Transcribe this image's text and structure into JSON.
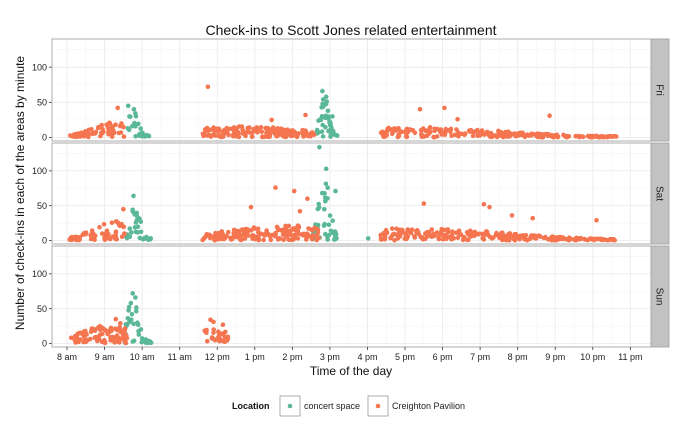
{
  "chart_data": {
    "type": "scatter",
    "title": "Check-ins to Scott Jones related entertainment",
    "xlabel": "Time of the day",
    "ylabel": "Number of check-ins in each of the areas by minute",
    "x_units": "hours since midnight",
    "xlim": [
      7.6,
      23.55
    ],
    "ylim": [
      -5,
      140
    ],
    "x_ticks": [
      8,
      9,
      10,
      11,
      12,
      13,
      14,
      15,
      16,
      17,
      18,
      19,
      20,
      21,
      22,
      23
    ],
    "x_tick_labels": [
      "8 am",
      "9 am",
      "10 am",
      "11 am",
      "12 pm",
      "1 pm",
      "2 pm",
      "3 pm",
      "4 pm",
      "5 pm",
      "6 pm",
      "7 pm",
      "8 pm",
      "9 pm",
      "10 pm",
      "11 pm"
    ],
    "y_ticks": [
      0,
      50,
      100
    ],
    "y_tick_labels": [
      "0",
      "50",
      "100"
    ],
    "grid": true,
    "facets": [
      "Fri",
      "Sat",
      "Sun"
    ],
    "legend": {
      "title": "Location",
      "position": "bottom",
      "entries": [
        {
          "label": "concert space",
          "color": "#5ab897"
        },
        {
          "label": "Creighton Pavilion",
          "color": "#f4754f"
        }
      ]
    },
    "series": [
      {
        "name": "concert space",
        "color": "#5ab897",
        "facets": {
          "Fri": {
            "clusters": [
              {
                "x0": 9.55,
                "x1": 10.2,
                "n": 30,
                "peakx": 9.75,
                "peaky": 42,
                "floor": 3,
                "spread": 0.18
              },
              {
                "x0": 14.65,
                "x1": 15.2,
                "n": 40,
                "peakx": 14.85,
                "peaky": 65,
                "floor": 4,
                "spread": 0.15
              }
            ],
            "points": [
              [
                9.63,
                45
              ],
              [
                9.78,
                40
              ],
              [
                14.8,
                66
              ],
              [
                14.9,
                58
              ],
              [
                15.07,
                30
              ]
            ]
          },
          "Sat": {
            "clusters": [
              {
                "x0": 9.55,
                "x1": 10.25,
                "n": 34,
                "peakx": 9.8,
                "peaky": 60,
                "floor": 3,
                "spread": 0.18
              },
              {
                "x0": 14.5,
                "x1": 15.2,
                "n": 50,
                "peakx": 14.85,
                "peaky": 95,
                "floor": 4,
                "spread": 0.2
              }
            ],
            "points": [
              [
                14.72,
                134
              ],
              [
                14.9,
                103
              ],
              [
                15.15,
                71
              ],
              [
                16.02,
                3
              ],
              [
                9.77,
                64
              ]
            ]
          },
          "Sun": {
            "clusters": [
              {
                "x0": 9.5,
                "x1": 10.25,
                "n": 42,
                "peakx": 9.75,
                "peaky": 68,
                "floor": 3,
                "spread": 0.2
              }
            ],
            "points": [
              [
                9.75,
                72
              ],
              [
                9.82,
                66
              ],
              [
                9.7,
                58
              ]
            ]
          }
        }
      },
      {
        "name": "Creighton Pavilion",
        "color": "#f4754f",
        "facets": {
          "Fri": {
            "clusters": [
              {
                "x0": 8.05,
                "x1": 9.55,
                "n": 65,
                "peakx": 9.3,
                "peaky": 22,
                "floor": 2,
                "spread": 0.8
              },
              {
                "x0": 11.6,
                "x1": 14.6,
                "n": 150,
                "peakx": 12.7,
                "peaky": 16,
                "floor": 2,
                "spread": 2.2
              },
              {
                "x0": 16.35,
                "x1": 22.65,
                "n": 240,
                "peakx": 17.2,
                "peaky": 15,
                "floor": 1,
                "spread": 3.2
              }
            ],
            "points": [
              [
                11.75,
                72
              ],
              [
                9.35,
                42
              ],
              [
                14.35,
                32
              ],
              [
                17.4,
                40
              ],
              [
                18.05,
                42
              ],
              [
                20.85,
                31
              ],
              [
                13.45,
                25
              ],
              [
                18.4,
                26
              ]
            ]
          },
          "Sat": {
            "clusters": [
              {
                "x0": 8.05,
                "x1": 9.55,
                "n": 70,
                "peakx": 9.3,
                "peaky": 28,
                "floor": 2,
                "spread": 0.8
              },
              {
                "x0": 11.6,
                "x1": 14.7,
                "n": 160,
                "peakx": 13.8,
                "peaky": 22,
                "floor": 2,
                "spread": 2.2
              },
              {
                "x0": 16.35,
                "x1": 22.65,
                "n": 250,
                "peakx": 17.3,
                "peaky": 18,
                "floor": 1,
                "spread": 3.2
              }
            ],
            "points": [
              [
                13.55,
                76
              ],
              [
                14.05,
                71
              ],
              [
                9.5,
                45
              ],
              [
                12.9,
                48
              ],
              [
                17.5,
                53
              ],
              [
                19.1,
                52
              ],
              [
                19.25,
                48
              ],
              [
                19.85,
                36
              ],
              [
                22.1,
                29
              ],
              [
                20.4,
                32
              ],
              [
                14.4,
                60
              ],
              [
                14.2,
                42
              ]
            ]
          },
          "Sun": {
            "clusters": [
              {
                "x0": 8.1,
                "x1": 9.6,
                "n": 95,
                "peakx": 9.1,
                "peaky": 26,
                "floor": 2,
                "spread": 1.0
              },
              {
                "x0": 11.65,
                "x1": 12.3,
                "n": 30,
                "peakx": 11.9,
                "peaky": 25,
                "floor": 5,
                "spread": 0.5
              }
            ],
            "points": [
              [
                11.82,
                34
              ],
              [
                11.9,
                31
              ],
              [
                12.15,
                27
              ],
              [
                9.3,
                35
              ],
              [
                9.42,
                29
              ]
            ]
          }
        }
      }
    ]
  }
}
